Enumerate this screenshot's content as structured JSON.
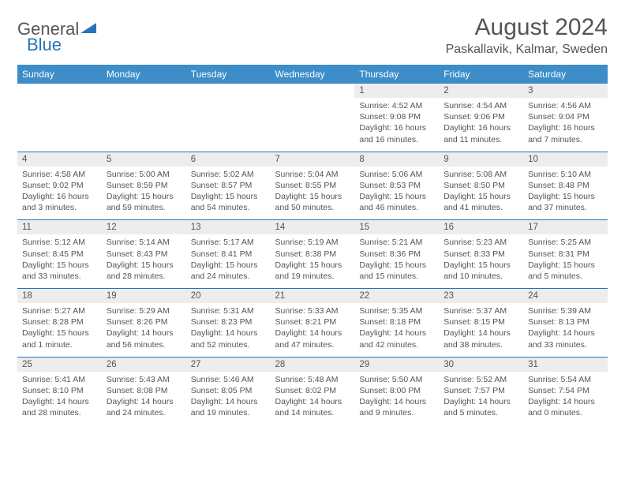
{
  "logo": {
    "part1": "General",
    "part2": "Blue"
  },
  "title": "August 2024",
  "location": "Paskallavik, Kalmar, Sweden",
  "colors": {
    "header_bg": "#3c8dc8",
    "border": "#2775b6",
    "daynum_bg": "#ededed",
    "text": "#555555"
  },
  "weekdays": [
    "Sunday",
    "Monday",
    "Tuesday",
    "Wednesday",
    "Thursday",
    "Friday",
    "Saturday"
  ],
  "weeks": [
    [
      null,
      null,
      null,
      null,
      {
        "n": "1",
        "sr": "Sunrise: 4:52 AM",
        "ss": "Sunset: 9:08 PM",
        "d1": "Daylight: 16 hours",
        "d2": "and 16 minutes."
      },
      {
        "n": "2",
        "sr": "Sunrise: 4:54 AM",
        "ss": "Sunset: 9:06 PM",
        "d1": "Daylight: 16 hours",
        "d2": "and 11 minutes."
      },
      {
        "n": "3",
        "sr": "Sunrise: 4:56 AM",
        "ss": "Sunset: 9:04 PM",
        "d1": "Daylight: 16 hours",
        "d2": "and 7 minutes."
      }
    ],
    [
      {
        "n": "4",
        "sr": "Sunrise: 4:58 AM",
        "ss": "Sunset: 9:02 PM",
        "d1": "Daylight: 16 hours",
        "d2": "and 3 minutes."
      },
      {
        "n": "5",
        "sr": "Sunrise: 5:00 AM",
        "ss": "Sunset: 8:59 PM",
        "d1": "Daylight: 15 hours",
        "d2": "and 59 minutes."
      },
      {
        "n": "6",
        "sr": "Sunrise: 5:02 AM",
        "ss": "Sunset: 8:57 PM",
        "d1": "Daylight: 15 hours",
        "d2": "and 54 minutes."
      },
      {
        "n": "7",
        "sr": "Sunrise: 5:04 AM",
        "ss": "Sunset: 8:55 PM",
        "d1": "Daylight: 15 hours",
        "d2": "and 50 minutes."
      },
      {
        "n": "8",
        "sr": "Sunrise: 5:06 AM",
        "ss": "Sunset: 8:53 PM",
        "d1": "Daylight: 15 hours",
        "d2": "and 46 minutes."
      },
      {
        "n": "9",
        "sr": "Sunrise: 5:08 AM",
        "ss": "Sunset: 8:50 PM",
        "d1": "Daylight: 15 hours",
        "d2": "and 41 minutes."
      },
      {
        "n": "10",
        "sr": "Sunrise: 5:10 AM",
        "ss": "Sunset: 8:48 PM",
        "d1": "Daylight: 15 hours",
        "d2": "and 37 minutes."
      }
    ],
    [
      {
        "n": "11",
        "sr": "Sunrise: 5:12 AM",
        "ss": "Sunset: 8:45 PM",
        "d1": "Daylight: 15 hours",
        "d2": "and 33 minutes."
      },
      {
        "n": "12",
        "sr": "Sunrise: 5:14 AM",
        "ss": "Sunset: 8:43 PM",
        "d1": "Daylight: 15 hours",
        "d2": "and 28 minutes."
      },
      {
        "n": "13",
        "sr": "Sunrise: 5:17 AM",
        "ss": "Sunset: 8:41 PM",
        "d1": "Daylight: 15 hours",
        "d2": "and 24 minutes."
      },
      {
        "n": "14",
        "sr": "Sunrise: 5:19 AM",
        "ss": "Sunset: 8:38 PM",
        "d1": "Daylight: 15 hours",
        "d2": "and 19 minutes."
      },
      {
        "n": "15",
        "sr": "Sunrise: 5:21 AM",
        "ss": "Sunset: 8:36 PM",
        "d1": "Daylight: 15 hours",
        "d2": "and 15 minutes."
      },
      {
        "n": "16",
        "sr": "Sunrise: 5:23 AM",
        "ss": "Sunset: 8:33 PM",
        "d1": "Daylight: 15 hours",
        "d2": "and 10 minutes."
      },
      {
        "n": "17",
        "sr": "Sunrise: 5:25 AM",
        "ss": "Sunset: 8:31 PM",
        "d1": "Daylight: 15 hours",
        "d2": "and 5 minutes."
      }
    ],
    [
      {
        "n": "18",
        "sr": "Sunrise: 5:27 AM",
        "ss": "Sunset: 8:28 PM",
        "d1": "Daylight: 15 hours",
        "d2": "and 1 minute."
      },
      {
        "n": "19",
        "sr": "Sunrise: 5:29 AM",
        "ss": "Sunset: 8:26 PM",
        "d1": "Daylight: 14 hours",
        "d2": "and 56 minutes."
      },
      {
        "n": "20",
        "sr": "Sunrise: 5:31 AM",
        "ss": "Sunset: 8:23 PM",
        "d1": "Daylight: 14 hours",
        "d2": "and 52 minutes."
      },
      {
        "n": "21",
        "sr": "Sunrise: 5:33 AM",
        "ss": "Sunset: 8:21 PM",
        "d1": "Daylight: 14 hours",
        "d2": "and 47 minutes."
      },
      {
        "n": "22",
        "sr": "Sunrise: 5:35 AM",
        "ss": "Sunset: 8:18 PM",
        "d1": "Daylight: 14 hours",
        "d2": "and 42 minutes."
      },
      {
        "n": "23",
        "sr": "Sunrise: 5:37 AM",
        "ss": "Sunset: 8:15 PM",
        "d1": "Daylight: 14 hours",
        "d2": "and 38 minutes."
      },
      {
        "n": "24",
        "sr": "Sunrise: 5:39 AM",
        "ss": "Sunset: 8:13 PM",
        "d1": "Daylight: 14 hours",
        "d2": "and 33 minutes."
      }
    ],
    [
      {
        "n": "25",
        "sr": "Sunrise: 5:41 AM",
        "ss": "Sunset: 8:10 PM",
        "d1": "Daylight: 14 hours",
        "d2": "and 28 minutes."
      },
      {
        "n": "26",
        "sr": "Sunrise: 5:43 AM",
        "ss": "Sunset: 8:08 PM",
        "d1": "Daylight: 14 hours",
        "d2": "and 24 minutes."
      },
      {
        "n": "27",
        "sr": "Sunrise: 5:46 AM",
        "ss": "Sunset: 8:05 PM",
        "d1": "Daylight: 14 hours",
        "d2": "and 19 minutes."
      },
      {
        "n": "28",
        "sr": "Sunrise: 5:48 AM",
        "ss": "Sunset: 8:02 PM",
        "d1": "Daylight: 14 hours",
        "d2": "and 14 minutes."
      },
      {
        "n": "29",
        "sr": "Sunrise: 5:50 AM",
        "ss": "Sunset: 8:00 PM",
        "d1": "Daylight: 14 hours",
        "d2": "and 9 minutes."
      },
      {
        "n": "30",
        "sr": "Sunrise: 5:52 AM",
        "ss": "Sunset: 7:57 PM",
        "d1": "Daylight: 14 hours",
        "d2": "and 5 minutes."
      },
      {
        "n": "31",
        "sr": "Sunrise: 5:54 AM",
        "ss": "Sunset: 7:54 PM",
        "d1": "Daylight: 14 hours",
        "d2": "and 0 minutes."
      }
    ]
  ]
}
